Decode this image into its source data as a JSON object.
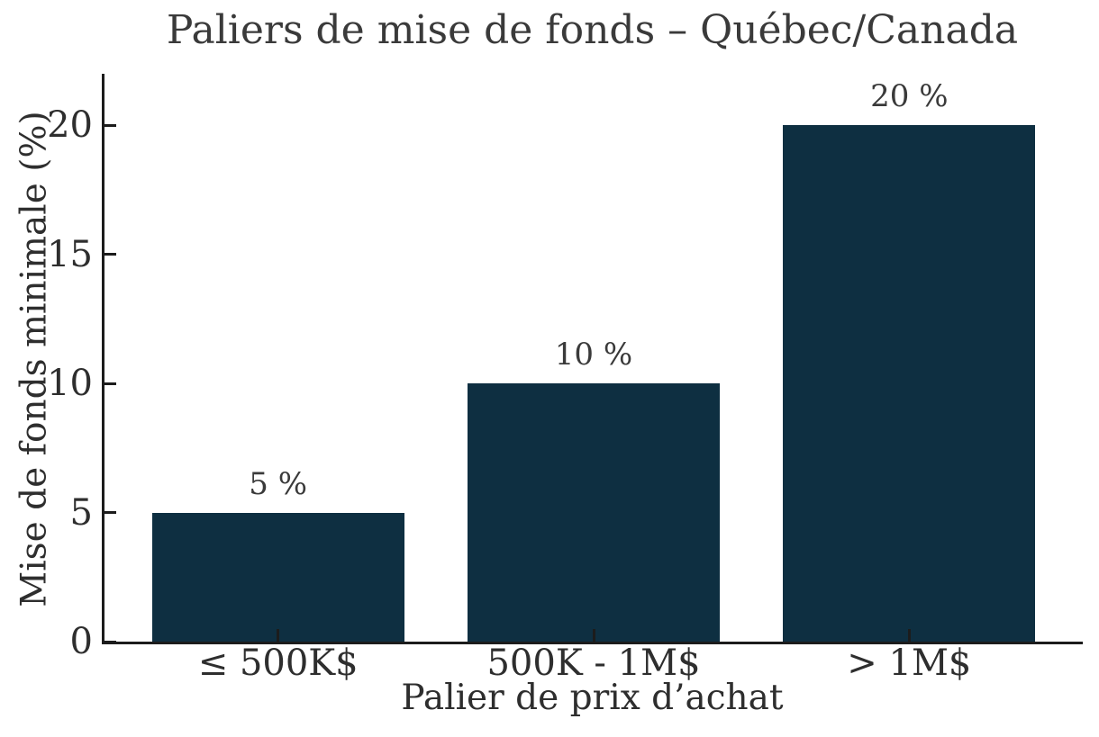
{
  "chart_data": {
    "type": "bar",
    "title": "Paliers de mise de fonds – Québec/Canada",
    "xlabel": "Palier de prix d’achat",
    "ylabel": "Mise de fonds minimale (%)",
    "categories": [
      "≤ 500K$",
      "500K - 1M$",
      "> 1M$"
    ],
    "values": [
      5,
      10,
      20
    ],
    "bar_labels": [
      "5 %",
      "10 %",
      "20 %"
    ],
    "yticks": [
      0,
      5,
      10,
      15,
      20
    ],
    "ylim": [
      0,
      22
    ],
    "xlim": [
      -0.55,
      2.55
    ],
    "bar_width_units": 0.8,
    "grid": false,
    "legend": "none",
    "tick_direction": "in",
    "colors": {
      "bar": "#0e2f41",
      "axis": "#1c1c1c",
      "title_text": "#3a3a3a",
      "tick_text": "#2e2e2e",
      "background": "#ffffff"
    }
  }
}
